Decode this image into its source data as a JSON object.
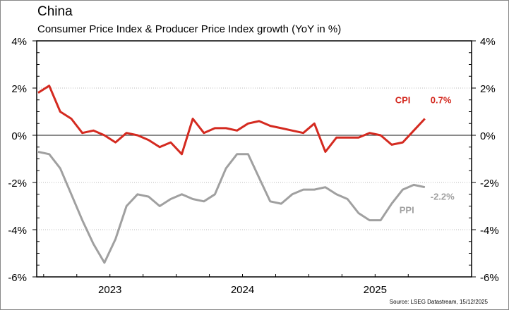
{
  "chart_data": {
    "type": "line",
    "title": "China",
    "subtitle": "Consumer Price Index & Producer Price Index growth (YoY in %)",
    "source": "Source: LSEG Datastream, 15/12/2025",
    "x_start": "2022-12",
    "x_end": "2025-11",
    "x_frequency": "monthly",
    "x_tick_labels": [
      "2023",
      "2024",
      "2025"
    ],
    "ylim": [
      -6,
      4
    ],
    "y_ticks": [
      -6,
      -4,
      -2,
      0,
      2,
      4
    ],
    "y_tick_labels": [
      "-6%",
      "-4%",
      "-2%",
      "0%",
      "2%",
      "4%"
    ],
    "y_axis_sides": "left and right",
    "grid": "horizontal dotted",
    "series": [
      {
        "name": "CPI",
        "color": "#d42a20",
        "end_label": "0.7%",
        "values": [
          1.8,
          2.1,
          1.0,
          0.7,
          0.1,
          0.2,
          0.0,
          -0.3,
          0.1,
          0.0,
          -0.2,
          -0.5,
          -0.3,
          -0.8,
          0.7,
          0.1,
          0.3,
          0.3,
          0.2,
          0.5,
          0.6,
          0.4,
          0.3,
          0.2,
          0.1,
          0.5,
          -0.7,
          -0.1,
          -0.1,
          -0.1,
          0.1,
          0.0,
          -0.4,
          -0.3,
          0.2,
          0.7
        ]
      },
      {
        "name": "PPI",
        "color": "#a0a0a0",
        "end_label": "-2.2%",
        "values": [
          -0.7,
          -0.8,
          -1.4,
          -2.5,
          -3.6,
          -4.6,
          -5.4,
          -4.4,
          -3.0,
          -2.5,
          -2.6,
          -3.0,
          -2.7,
          -2.5,
          -2.7,
          -2.8,
          -2.5,
          -1.4,
          -0.8,
          -0.8,
          -1.8,
          -2.8,
          -2.9,
          -2.5,
          -2.3,
          -2.3,
          -2.2,
          -2.5,
          -2.7,
          -3.3,
          -3.6,
          -3.6,
          -2.9,
          -2.3,
          -2.1,
          -2.2
        ]
      }
    ]
  }
}
